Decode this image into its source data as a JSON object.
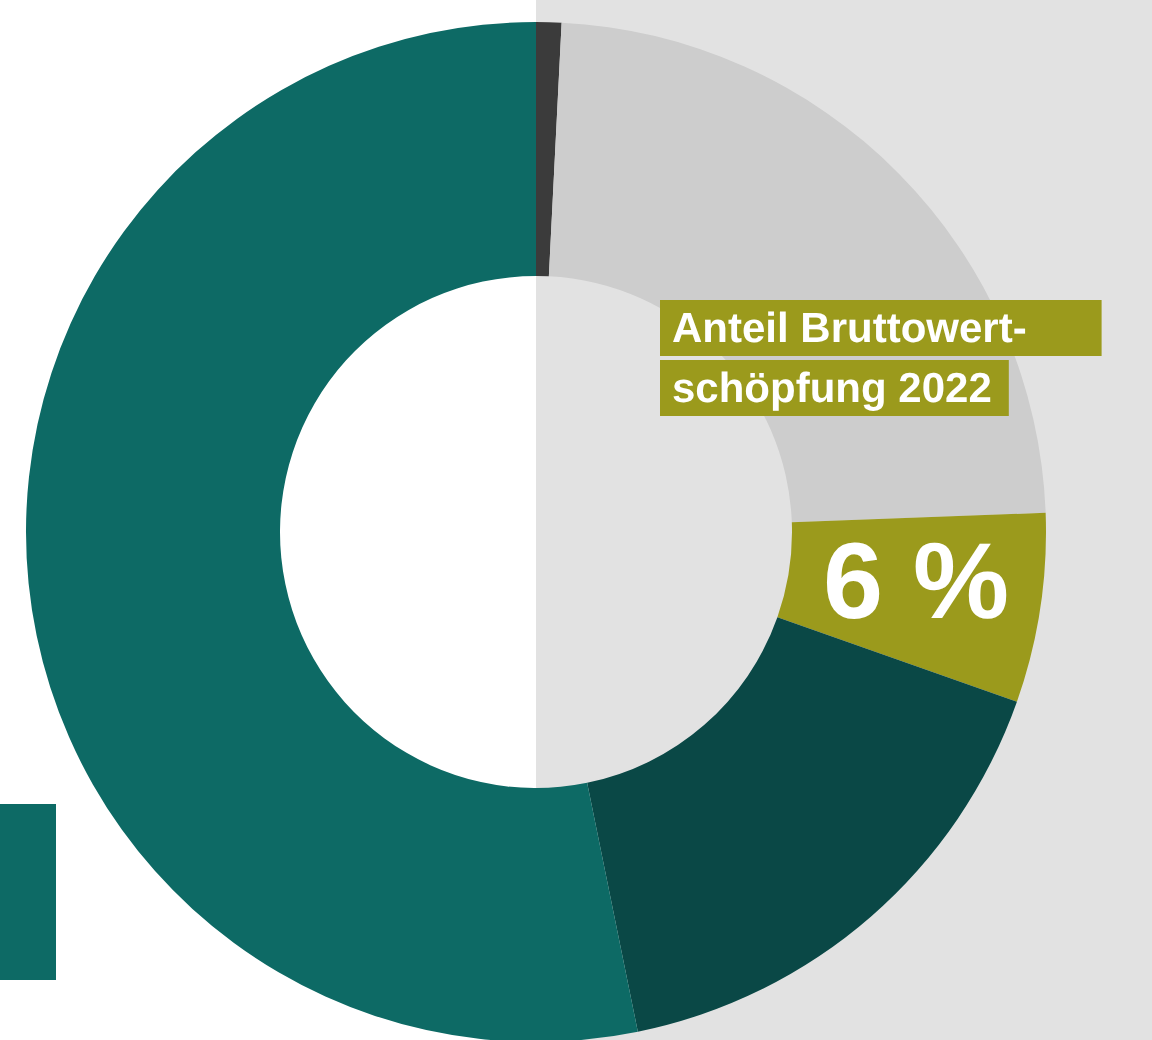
{
  "chart_data": {
    "type": "donut",
    "categories": [
      null,
      null,
      null,
      null,
      null
    ],
    "values": [
      0.8,
      23.6,
      6,
      16.4,
      53.2
    ],
    "colors": [
      "#3b3b3b",
      "#cdcdcd",
      "#9b9a1c",
      "#0a4846",
      "#0d6a65"
    ],
    "value_labels": [
      null,
      null,
      "6 %",
      null,
      null
    ],
    "annotations": [
      "Anteil Bruttowert-schöpfung 2022"
    ]
  }
}
